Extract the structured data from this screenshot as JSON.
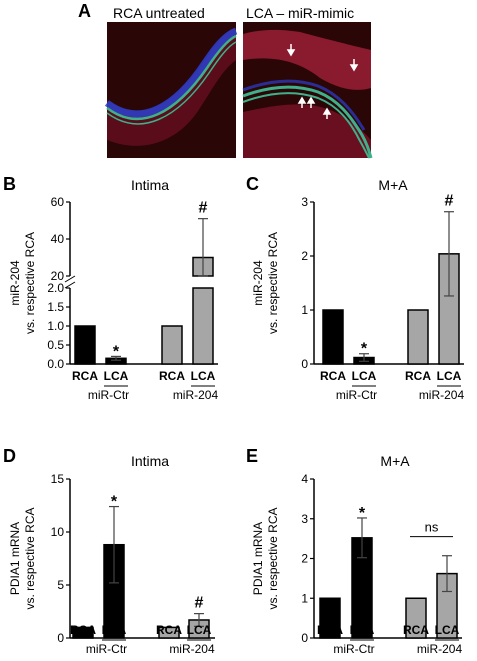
{
  "panel_labels": [
    "A",
    "B",
    "C",
    "D",
    "E"
  ],
  "panel_a": {
    "left_image_title": "RCA untreated",
    "right_image_title": "LCA – miR-mimic",
    "colors": {
      "background": "#2a0606",
      "tissue": "#7a1222",
      "elastic_lamina": "#3fb08a",
      "nuclei": "#2b3fd0",
      "arrow": "#ffffff"
    }
  },
  "colors": {
    "black_bar": "#000000",
    "grey_bar": "#a6a6a6"
  },
  "chart_data": [
    {
      "type": "bar",
      "panel": "B",
      "title": "Intima",
      "ylabel_line1": "miR-204",
      "ylabel_line2": "vs. respective RCA",
      "categories": [
        "RCA",
        "LCA",
        "RCA",
        "LCA"
      ],
      "groups": [
        "miR-Ctr",
        "miR-204"
      ],
      "values": [
        1.0,
        0.15,
        1.0,
        30
      ],
      "errors": [
        0,
        0.05,
        0,
        21
      ],
      "bar_colors": [
        "black",
        "black",
        "grey",
        "grey"
      ],
      "broken_axis": true,
      "segments": [
        {
          "ylim": [
            0,
            2.0
          ],
          "ticks": [
            "0.0",
            "0.5",
            "1.0",
            "1.5",
            "2.0"
          ]
        },
        {
          "ylim": [
            20,
            60
          ],
          "ticks": [
            "20",
            "40",
            "60"
          ]
        }
      ],
      "annotations": [
        {
          "bar": 1,
          "text": "*"
        },
        {
          "bar": 3,
          "text": "#"
        }
      ]
    },
    {
      "type": "bar",
      "panel": "C",
      "title": "M+A",
      "ylabel_line1": "miR-204",
      "ylabel_line2": "vs. respective RCA",
      "categories": [
        "RCA",
        "LCA",
        "RCA",
        "LCA"
      ],
      "groups": [
        "miR-Ctr",
        "miR-204"
      ],
      "values": [
        1.0,
        0.12,
        1.0,
        2.04
      ],
      "errors": [
        0,
        0.07,
        0,
        0.78
      ],
      "bar_colors": [
        "black",
        "black",
        "grey",
        "grey"
      ],
      "ylim": [
        0,
        3
      ],
      "ticks": [
        "0",
        "1",
        "2",
        "3"
      ],
      "annotations": [
        {
          "bar": 1,
          "text": "*"
        },
        {
          "bar": 3,
          "text": "#"
        }
      ]
    },
    {
      "type": "bar",
      "panel": "D",
      "title": "Intima",
      "ylabel_line1": "PDIA1 mRNA",
      "ylabel_line2": "vs. respective RCA",
      "categories": [
        "RCA",
        "LCA",
        "RCA",
        "LCA"
      ],
      "groups": [
        "miR-Ctr",
        "miR-204"
      ],
      "values": [
        1.0,
        8.8,
        1.0,
        1.7
      ],
      "errors": [
        0,
        3.6,
        0,
        0.6
      ],
      "bar_colors": [
        "black",
        "black",
        "grey",
        "grey"
      ],
      "ylim": [
        0,
        15
      ],
      "ticks": [
        "0",
        "5",
        "10",
        "15"
      ],
      "annotations": [
        {
          "bar": 1,
          "text": "*"
        },
        {
          "bar": 3,
          "text": "#"
        }
      ]
    },
    {
      "type": "bar",
      "panel": "E",
      "title": "M+A",
      "ylabel_line1": "PDIA1 mRNA",
      "ylabel_line2": "vs. respective RCA",
      "categories": [
        "RCA",
        "LCA",
        "RCA",
        "LCA"
      ],
      "groups": [
        "miR-Ctr",
        "miR-204"
      ],
      "values": [
        1.0,
        2.52,
        1.0,
        1.62
      ],
      "errors": [
        0,
        0.5,
        0,
        0.45
      ],
      "bar_colors": [
        "black",
        "black",
        "grey",
        "grey"
      ],
      "ylim": [
        0,
        4
      ],
      "ticks": [
        "0",
        "1",
        "2",
        "3",
        "4"
      ],
      "annotations": [
        {
          "bar": 1,
          "text": "*"
        }
      ],
      "bracket_label": "ns"
    }
  ]
}
